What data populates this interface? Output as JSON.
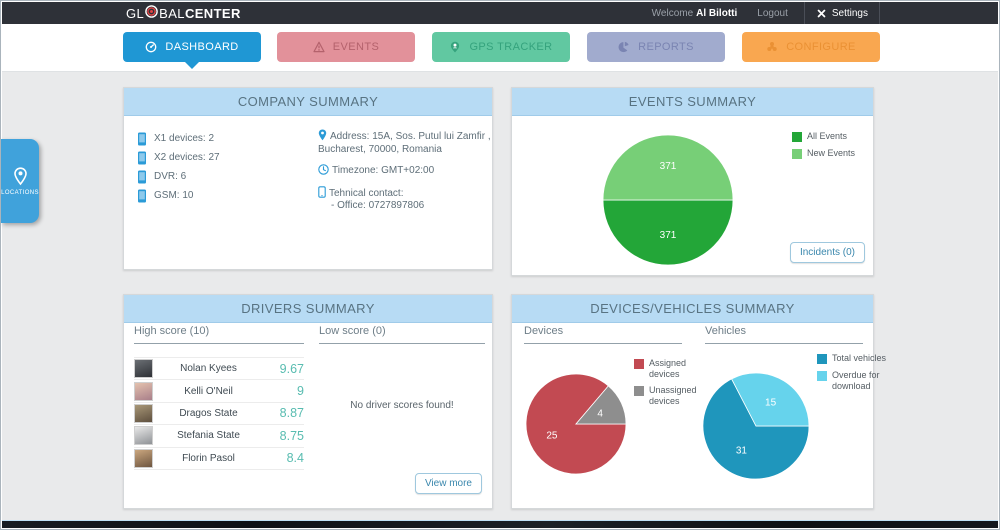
{
  "header": {
    "logo": {
      "part1": "GL",
      "part2": "BAL",
      "part3": "CENTER",
      "accent_color": "#e04343"
    },
    "welcome_label": "Welcome",
    "user_name": "Al Bilotti",
    "logout_label": "Logout",
    "settings_label": "Settings"
  },
  "nav": {
    "tabs": [
      {
        "label": "DASHBOARD",
        "icon": "gauge-icon",
        "bg": "#1f97d4",
        "fg": "#ffffff",
        "active": true
      },
      {
        "label": "EVENTS",
        "icon": "warning-icon",
        "bg": "#e2919a",
        "fg": "#b4626c",
        "active": false
      },
      {
        "label": "GPS TRACKER",
        "icon": "person-pin-icon",
        "bg": "#61c8a1",
        "fg": "#35a37d",
        "active": false
      },
      {
        "label": "REPORTS",
        "icon": "pie-chart-icon",
        "bg": "#a1abce",
        "fg": "#7a84b2",
        "active": false
      },
      {
        "label": "CONFIGURE",
        "icon": "gear-icon",
        "bg": "#f9a750",
        "fg": "#ea9134",
        "active": false
      }
    ]
  },
  "locations_tab": {
    "label": "LOCATIONS"
  },
  "company_summary": {
    "title": "COMPANY SUMMARY",
    "stats": [
      "X1 devices: 2",
      "X2 devices: 27",
      "DVR: 6",
      "GSM: 10"
    ],
    "address": "Address: 15A, Sos. Putul lui Zamfir , Bucharest, 70000, Romania",
    "timezone": "Timezone: GMT+02:00",
    "contact_title": "Tehnical contact:",
    "contact_office": "- Office: 0727897806"
  },
  "events_summary": {
    "title": "EVENTS SUMMARY",
    "incidents_button": "Incidents (0)"
  },
  "drivers_summary": {
    "title": "DRIVERS SUMMARY",
    "high_score_header": "High score (10)",
    "low_score_header": "Low score (0)",
    "high_scores": [
      {
        "name": "Nolan Kyees",
        "score": "9.67"
      },
      {
        "name": "Kelli O'Neil",
        "score": "9"
      },
      {
        "name": "Dragos State",
        "score": "8.87"
      },
      {
        "name": "Stefania State",
        "score": "8.75"
      },
      {
        "name": "Florin Pasol",
        "score": "8.4"
      }
    ],
    "no_scores_message": "No driver scores found!",
    "view_more_button": "View more"
  },
  "devices_vehicles_summary": {
    "title": "DEVICES/VEHICLES SUMMARY",
    "devices_header": "Devices",
    "vehicles_header": "Vehicles"
  },
  "chart_data": [
    {
      "id": "events-pie",
      "type": "pie",
      "title": "Events Summary",
      "series": [
        {
          "name": "All Events",
          "value": 371,
          "color": "#23a638"
        },
        {
          "name": "New Events",
          "value": 371,
          "color": "#77cf77"
        }
      ],
      "start_angle_deg": 90,
      "legend_position": "top-right",
      "label_color": "#ffffff"
    },
    {
      "id": "devices-pie",
      "type": "pie",
      "title": "Devices",
      "series": [
        {
          "name": "Assigned devices",
          "value": 25,
          "color": "#c24a52"
        },
        {
          "name": "Unassigned devices",
          "value": 4,
          "color": "#8e8e8e"
        }
      ],
      "start_angle_deg": 90,
      "legend_position": "right",
      "label_color": "#ffffff"
    },
    {
      "id": "vehicles-pie",
      "type": "pie",
      "title": "Vehicles",
      "series": [
        {
          "name": "Total vehicles",
          "value": 31,
          "color": "#1f96bc"
        },
        {
          "name": "Overdue for download",
          "value": 15,
          "color": "#66d3ec"
        }
      ],
      "start_angle_deg": 90,
      "legend_position": "right",
      "label_color": "#ffffff"
    }
  ]
}
